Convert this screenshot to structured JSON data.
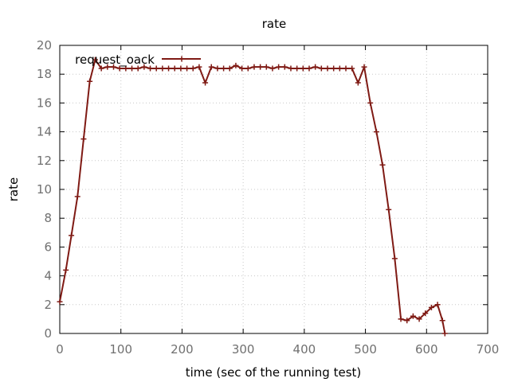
{
  "chart_data": {
    "type": "line",
    "title": "rate",
    "xlabel": "time (sec of the running test)",
    "ylabel": "rate",
    "xlim": [
      0,
      700
    ],
    "ylim": [
      0,
      20
    ],
    "xticks": [
      0,
      100,
      200,
      300,
      400,
      500,
      600,
      700
    ],
    "yticks": [
      0,
      2,
      4,
      6,
      8,
      10,
      12,
      14,
      16,
      18,
      20
    ],
    "grid": true,
    "legend": "top-left",
    "series": [
      {
        "name": "request_oack",
        "color": "#7f1a14",
        "marker": "plus",
        "points": [
          [
            0,
            2.2
          ],
          [
            10,
            4.4
          ],
          [
            19,
            6.8
          ],
          [
            29,
            9.5
          ],
          [
            39,
            13.5
          ],
          [
            49,
            17.5
          ],
          [
            58,
            19.0
          ],
          [
            68,
            18.4
          ],
          [
            78,
            18.5
          ],
          [
            88,
            18.5
          ],
          [
            98,
            18.4
          ],
          [
            108,
            18.4
          ],
          [
            118,
            18.4
          ],
          [
            128,
            18.4
          ],
          [
            138,
            18.5
          ],
          [
            148,
            18.4
          ],
          [
            158,
            18.4
          ],
          [
            168,
            18.4
          ],
          [
            178,
            18.4
          ],
          [
            188,
            18.4
          ],
          [
            198,
            18.4
          ],
          [
            208,
            18.4
          ],
          [
            218,
            18.4
          ],
          [
            228,
            18.5
          ],
          [
            238,
            17.4
          ],
          [
            248,
            18.5
          ],
          [
            258,
            18.4
          ],
          [
            268,
            18.4
          ],
          [
            278,
            18.4
          ],
          [
            288,
            18.6
          ],
          [
            298,
            18.4
          ],
          [
            308,
            18.4
          ],
          [
            318,
            18.5
          ],
          [
            328,
            18.5
          ],
          [
            338,
            18.5
          ],
          [
            348,
            18.4
          ],
          [
            358,
            18.5
          ],
          [
            368,
            18.5
          ],
          [
            378,
            18.4
          ],
          [
            388,
            18.4
          ],
          [
            398,
            18.4
          ],
          [
            408,
            18.4
          ],
          [
            418,
            18.5
          ],
          [
            428,
            18.4
          ],
          [
            438,
            18.4
          ],
          [
            448,
            18.4
          ],
          [
            458,
            18.4
          ],
          [
            468,
            18.4
          ],
          [
            478,
            18.4
          ],
          [
            488,
            17.4
          ],
          [
            498,
            18.5
          ],
          [
            508,
            16.0
          ],
          [
            518,
            14.0
          ],
          [
            528,
            11.7
          ],
          [
            538,
            8.6
          ],
          [
            548,
            5.2
          ],
          [
            558,
            1.0
          ],
          [
            568,
            0.9
          ],
          [
            578,
            1.2
          ],
          [
            588,
            1.0
          ],
          [
            598,
            1.4
          ],
          [
            608,
            1.8
          ],
          [
            618,
            2.0
          ],
          [
            626,
            0.9
          ],
          [
            630,
            0.0
          ]
        ]
      }
    ]
  }
}
